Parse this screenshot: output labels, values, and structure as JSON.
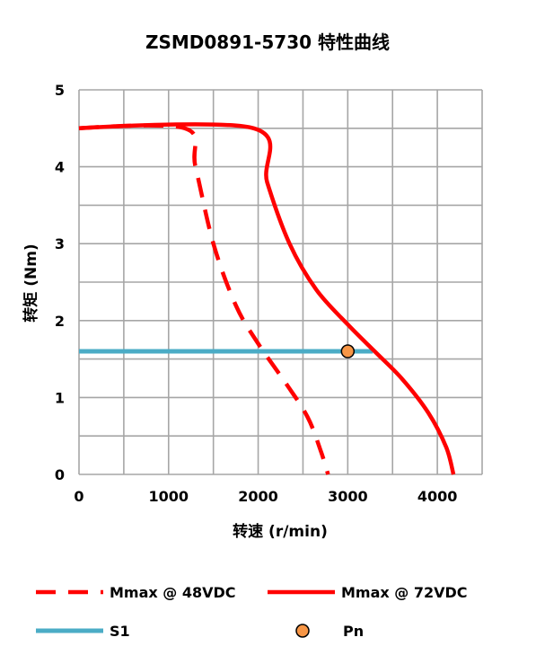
{
  "chart_data": {
    "type": "line",
    "title": "ZSMD0891-5730 特性曲线",
    "xlabel": "转速 (r/min)",
    "ylabel": "转矩 (Nm)",
    "xlim": [
      0,
      4500
    ],
    "ylim": [
      0,
      5
    ],
    "xticks": [
      "0",
      "1000",
      "2000",
      "3000",
      "4000"
    ],
    "yticks": [
      "0",
      "1",
      "2",
      "3",
      "4",
      "5"
    ],
    "grid": true,
    "legend_position": "bottom",
    "series": [
      {
        "name": "Mmax @ 48VDC",
        "color": "#ff0000",
        "style": "dashed",
        "points": [
          [
            0,
            4.5
          ],
          [
            1180,
            4.5
          ],
          [
            1300,
            4.0
          ],
          [
            1500,
            3.0
          ],
          [
            1750,
            2.2
          ],
          [
            2000,
            1.7
          ],
          [
            2300,
            1.2
          ],
          [
            2550,
            0.75
          ],
          [
            2700,
            0.3
          ],
          [
            2780,
            0
          ]
        ]
      },
      {
        "name": "Mmax @ 72VDC",
        "color": "#ff0000",
        "style": "solid",
        "points": [
          [
            0,
            4.5
          ],
          [
            1950,
            4.5
          ],
          [
            2100,
            3.8
          ],
          [
            2350,
            3.0
          ],
          [
            2650,
            2.4
          ],
          [
            3000,
            1.95
          ],
          [
            3300,
            1.6
          ],
          [
            3600,
            1.25
          ],
          [
            3900,
            0.8
          ],
          [
            4100,
            0.35
          ],
          [
            4180,
            0
          ]
        ]
      },
      {
        "name": "S1",
        "color": "#4bacc6",
        "style": "solid",
        "points": [
          [
            0,
            1.6
          ],
          [
            3280,
            1.6
          ]
        ]
      },
      {
        "name": "Pn",
        "color": "#f79646",
        "style": "marker",
        "points": [
          [
            3000,
            1.6
          ]
        ]
      }
    ]
  }
}
